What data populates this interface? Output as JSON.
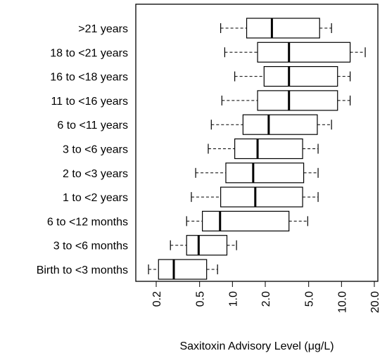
{
  "chart_data": {
    "type": "boxplot",
    "orientation": "horizontal",
    "xlabel": "Saxitoxin Advisory Level (μg/L)",
    "xscale": "log",
    "xlim": [
      0.15,
      20.0
    ],
    "xticks": [
      0.2,
      0.5,
      1.0,
      2.0,
      5.0,
      10.0,
      20.0
    ],
    "xtick_labels": [
      "0.2",
      "0.5",
      "1.0",
      "2.0",
      "5.0",
      "10.0",
      "20.0"
    ],
    "grid": false,
    "categories": [
      "Birth to <3 months",
      "3 to <6 months",
      "6 to <12 months",
      "1 to <2 years",
      "2 to <3 years",
      "3 to <6 years",
      "6 to <11 years",
      "11 to <16 years",
      "16 to <18 years",
      "18 to <21 years",
      ">21 years"
    ],
    "boxes": [
      {
        "whisker_low": 0.17,
        "q1": 0.21,
        "median": 0.29,
        "q3": 0.58,
        "whisker_high": 0.73
      },
      {
        "whisker_low": 0.27,
        "q1": 0.38,
        "median": 0.49,
        "q3": 0.89,
        "whisker_high": 1.09
      },
      {
        "whisker_low": 0.38,
        "q1": 0.53,
        "median": 0.77,
        "q3": 3.3,
        "whisker_high": 4.9
      },
      {
        "whisker_low": 0.42,
        "q1": 0.78,
        "median": 1.62,
        "q3": 4.4,
        "whisker_high": 6.1
      },
      {
        "whisker_low": 0.46,
        "q1": 0.87,
        "median": 1.55,
        "q3": 4.5,
        "whisker_high": 6.1
      },
      {
        "whisker_low": 0.6,
        "q1": 1.05,
        "median": 1.7,
        "q3": 4.4,
        "whisker_high": 6.1
      },
      {
        "whisker_low": 0.64,
        "q1": 1.25,
        "median": 2.15,
        "q3": 6.0,
        "whisker_high": 8.1
      },
      {
        "whisker_low": 0.8,
        "q1": 1.7,
        "median": 3.3,
        "q3": 9.2,
        "whisker_high": 12.0
      },
      {
        "whisker_low": 1.05,
        "q1": 1.95,
        "median": 3.3,
        "q3": 9.2,
        "whisker_high": 12.0
      },
      {
        "whisker_low": 0.85,
        "q1": 1.7,
        "median": 3.3,
        "q3": 12.0,
        "whisker_high": 16.5
      },
      {
        "whisker_low": 0.78,
        "q1": 1.35,
        "median": 2.3,
        "q3": 6.3,
        "whisker_high": 8.1
      }
    ]
  }
}
